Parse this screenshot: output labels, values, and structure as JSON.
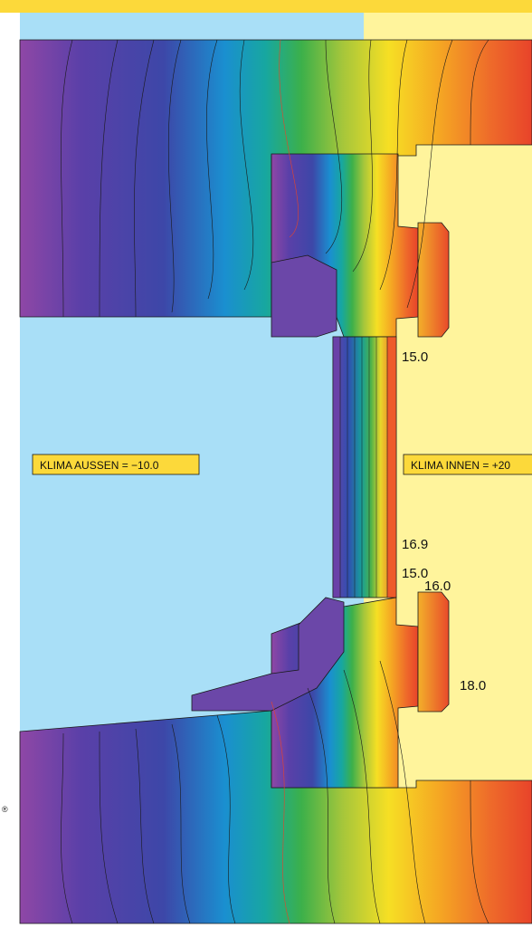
{
  "diagram": {
    "klima_aussen": "KLIMA AUSSEN = −10.0",
    "klima_innen": "KLIMA INNEN = +20",
    "temperature_labels": [
      "15.0",
      "16.9",
      "15.0",
      "16.0",
      "18.0"
    ],
    "corner_mark": "®"
  },
  "colors": {
    "top_band": "#fcd93a",
    "outside_climate": "#a9dff7",
    "inside_climate": "#fff49c",
    "label_box": "#fcd93a",
    "gradient": [
      "#8f47a6",
      "#3d47a8",
      "#1a8fd0",
      "#17a7a0",
      "#3cb04a",
      "#a5c63b",
      "#f6df24",
      "#f5a623",
      "#ee6a2a",
      "#e8432a"
    ]
  }
}
